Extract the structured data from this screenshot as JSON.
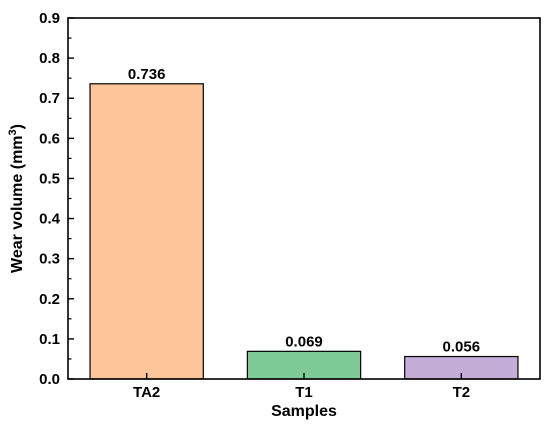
{
  "chart_data": {
    "type": "bar",
    "categories": [
      "TA2",
      "T1",
      "T2"
    ],
    "values": [
      0.736,
      0.069,
      0.056
    ],
    "data_labels": [
      "0.736",
      "0.069",
      "0.056"
    ],
    "colors": [
      "#FDC59A",
      "#7FCB98",
      "#C4AED8"
    ],
    "xlabel": "Samples",
    "ylabel_main": "Wear volume (mm",
    "ylabel_sup": "3",
    "ylabel_end": ")",
    "ylim": [
      0,
      0.9
    ],
    "yticks": [
      0.0,
      0.1,
      0.2,
      0.3,
      0.4,
      0.5,
      0.6,
      0.7,
      0.8,
      0.9
    ],
    "ytick_labels": [
      "0.0",
      "0.1",
      "0.2",
      "0.3",
      "0.4",
      "0.5",
      "0.6",
      "0.7",
      "0.8",
      "0.9"
    ],
    "grid": false,
    "legend": "none"
  }
}
